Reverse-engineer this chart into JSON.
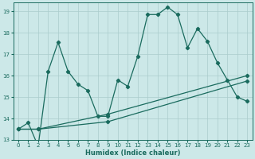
{
  "xlabel": "Humidex (Indice chaleur)",
  "ylabel": "",
  "xlim": [
    -0.5,
    23.5
  ],
  "ylim": [
    13,
    19.4
  ],
  "yticks": [
    13,
    14,
    15,
    16,
    17,
    18,
    19
  ],
  "xticks": [
    0,
    1,
    2,
    3,
    4,
    5,
    6,
    7,
    8,
    9,
    10,
    11,
    12,
    13,
    14,
    15,
    16,
    17,
    18,
    19,
    20,
    21,
    22,
    23
  ],
  "bg_color": "#cce8e8",
  "grid_color": "#aacccc",
  "line_color": "#1a6b5e",
  "series1_x": [
    0,
    1,
    2,
    3,
    4,
    5,
    6,
    7,
    8,
    9,
    10,
    11,
    12,
    13,
    14,
    15,
    16,
    17,
    18,
    19,
    20,
    21,
    22,
    23
  ],
  "series1_y": [
    13.5,
    13.8,
    12.7,
    16.2,
    17.55,
    16.2,
    15.6,
    15.3,
    14.1,
    14.1,
    15.8,
    15.5,
    16.9,
    18.85,
    18.85,
    19.2,
    18.85,
    17.3,
    18.2,
    17.6,
    16.6,
    15.8,
    15.0,
    14.8
  ],
  "series2_x": [
    0,
    2,
    9,
    23
  ],
  "series2_y": [
    13.5,
    13.5,
    14.2,
    16.0
  ],
  "series3_x": [
    0,
    2,
    9,
    23
  ],
  "series3_y": [
    13.5,
    13.5,
    13.85,
    15.75
  ]
}
